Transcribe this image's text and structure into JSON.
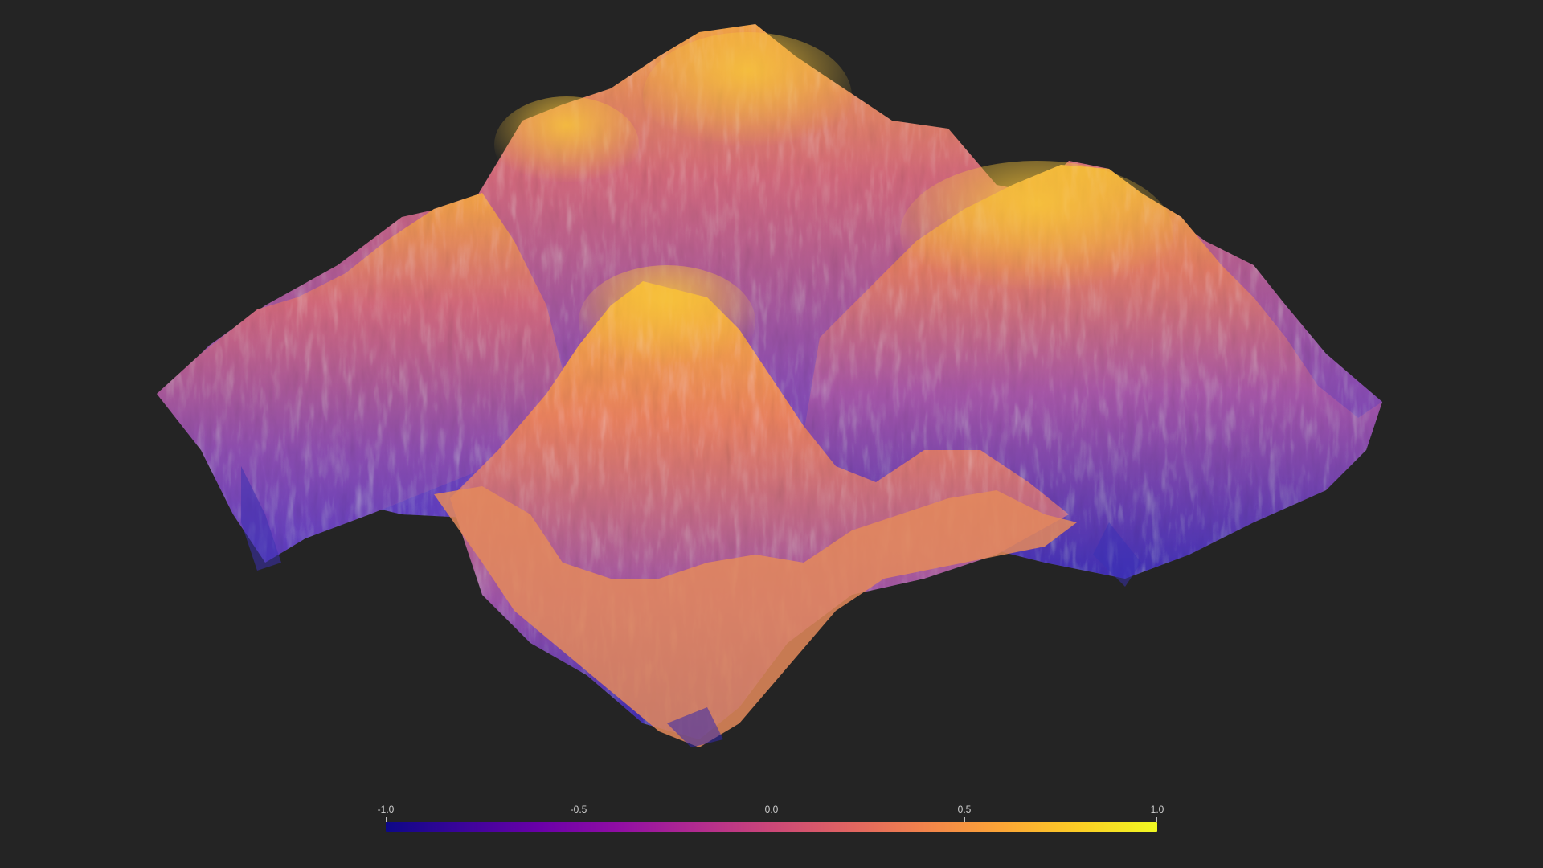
{
  "colorbar": {
    "ticks": [
      "-1.0",
      "-0.5",
      "0.0",
      "0.5",
      "1.0"
    ],
    "tick_values": [
      -1.0,
      -0.5,
      0.0,
      0.5,
      1.0
    ],
    "range": [
      -1.0,
      1.0
    ],
    "colormap": "plasma",
    "colors": [
      "#0d0887",
      "#3b049a",
      "#6a00a8",
      "#900da4",
      "#b12a90",
      "#cc4778",
      "#e16462",
      "#f2844b",
      "#fca636",
      "#fcce25",
      "#f0f921"
    ]
  },
  "scene": {
    "background": "#242424",
    "surface": "3D terrain surface"
  }
}
